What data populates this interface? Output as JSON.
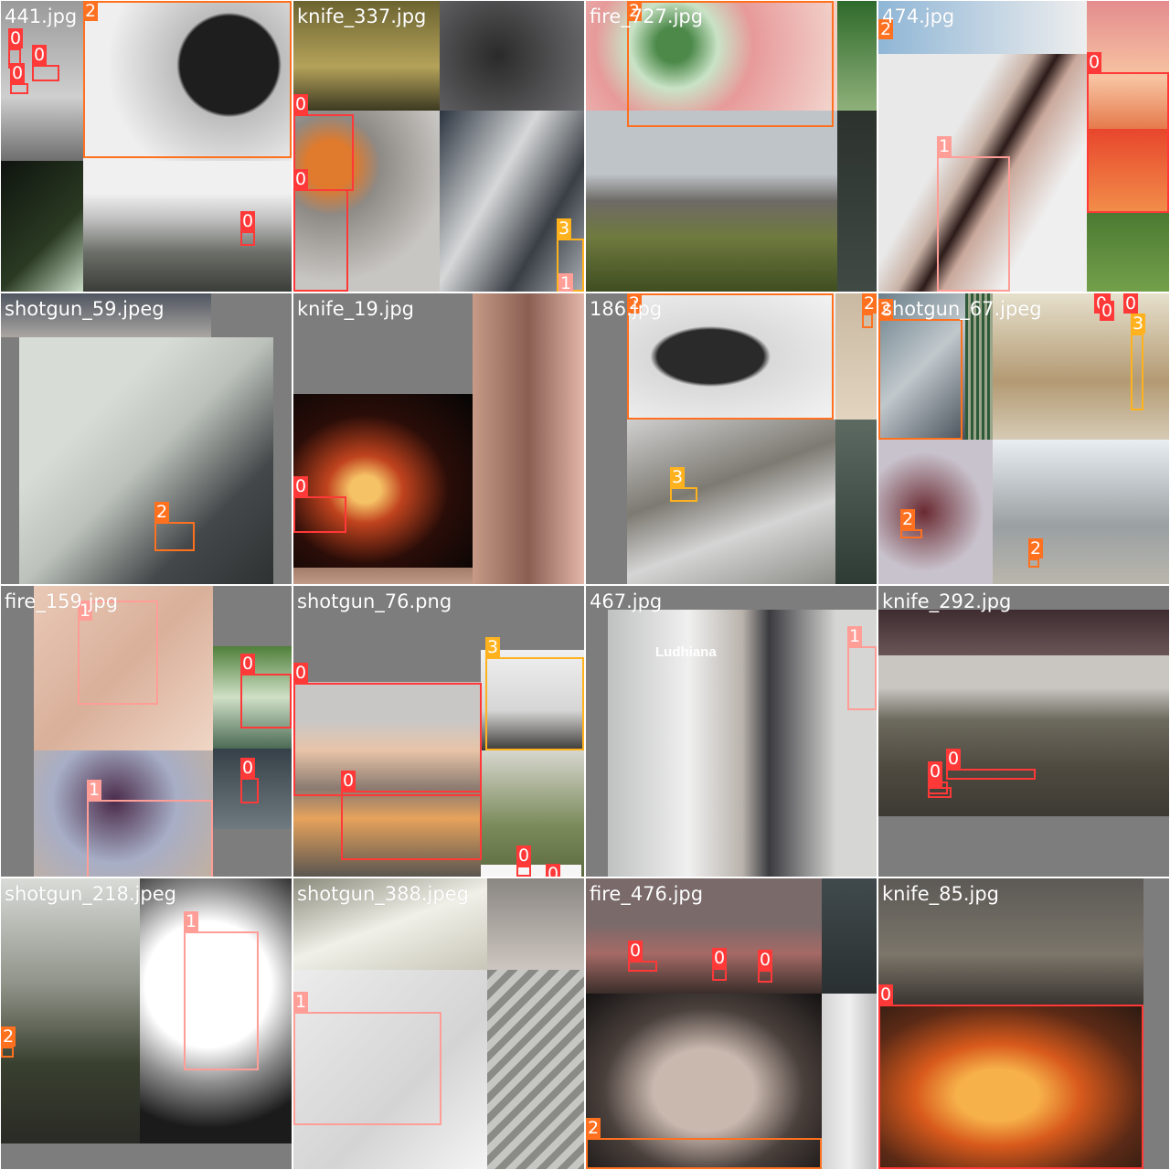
{
  "class_colors": {
    "0": "#ff3838",
    "1": "#ff9d97",
    "2": "#ff701f",
    "3": "#ffb21d"
  },
  "tiles": [
    {
      "label": "441.jpg",
      "theme": "gun-fire"
    },
    {
      "label": "knife_337.jpg",
      "theme": "smoke-fire"
    },
    {
      "label": "fire_727.jpg",
      "theme": "hill-smoke"
    },
    {
      "label": "474.jpg",
      "theme": "knife-sunset"
    },
    {
      "label": "shotgun_59.jpeg",
      "theme": "indoor-gray"
    },
    {
      "label": "knife_19.jpg",
      "theme": "night-fire"
    },
    {
      "label": "186.jpg",
      "theme": "pistol"
    },
    {
      "label": "shotgun_67.jpeg",
      "theme": "store"
    },
    {
      "label": "fire_159.jpg",
      "theme": "skin-closeup"
    },
    {
      "label": "shotgun_76.png",
      "theme": "house-fire"
    },
    {
      "label": "467.jpg",
      "theme": "cctv-man"
    },
    {
      "label": "knife_292.jpg",
      "theme": "wildfire-dark"
    },
    {
      "label": "shotgun_218.jpeg",
      "theme": "knife-spot"
    },
    {
      "label": "shotgun_388.jpeg",
      "theme": "knife-white"
    },
    {
      "label": "fire_476.jpg",
      "theme": "dusk-hand"
    },
    {
      "label": "knife_85.jpg",
      "theme": "forest-fire"
    }
  ],
  "boxes": [
    {
      "tile": 0,
      "cls": "0",
      "label": "0"
    },
    {
      "tile": 0,
      "cls": "0",
      "label": "0"
    },
    {
      "tile": 0,
      "cls": "0",
      "label": "0"
    },
    {
      "tile": 0,
      "cls": "2",
      "label": "2"
    },
    {
      "tile": 0,
      "cls": "0",
      "label": "0"
    },
    {
      "tile": 1,
      "cls": "0",
      "label": "0"
    },
    {
      "tile": 1,
      "cls": "0",
      "label": "0"
    },
    {
      "tile": 1,
      "cls": "3",
      "label": "3"
    },
    {
      "tile": 1,
      "cls": "1",
      "label": "1"
    },
    {
      "tile": 2,
      "cls": "2",
      "label": "2"
    },
    {
      "tile": 3,
      "cls": "0",
      "label": "0"
    },
    {
      "tile": 3,
      "cls": "1",
      "label": "1"
    },
    {
      "tile": 3,
      "cls": "2",
      "label": "2"
    },
    {
      "tile": 4,
      "cls": "2",
      "label": "2"
    },
    {
      "tile": 5,
      "cls": "0",
      "label": "0"
    },
    {
      "tile": 6,
      "cls": "2",
      "label": "2"
    },
    {
      "tile": 6,
      "cls": "3",
      "label": "3"
    },
    {
      "tile": 6,
      "cls": "2",
      "label": "2"
    },
    {
      "tile": 7,
      "cls": "2",
      "label": "2"
    },
    {
      "tile": 7,
      "cls": "3",
      "label": "3"
    },
    {
      "tile": 7,
      "cls": "2",
      "label": "2"
    },
    {
      "tile": 7,
      "cls": "2",
      "label": "2"
    },
    {
      "tile": 7,
      "cls": "0",
      "label": "0"
    },
    {
      "tile": 7,
      "cls": "0",
      "label": "0"
    },
    {
      "tile": 7,
      "cls": "0",
      "label": "0"
    },
    {
      "tile": 8,
      "cls": "1",
      "label": "1"
    },
    {
      "tile": 8,
      "cls": "0",
      "label": "0"
    },
    {
      "tile": 8,
      "cls": "1",
      "label": "1"
    },
    {
      "tile": 8,
      "cls": "0",
      "label": "0"
    },
    {
      "tile": 9,
      "cls": "0",
      "label": "0"
    },
    {
      "tile": 9,
      "cls": "3",
      "label": "3"
    },
    {
      "tile": 9,
      "cls": "0",
      "label": "0"
    },
    {
      "tile": 9,
      "cls": "0",
      "label": "0"
    },
    {
      "tile": 9,
      "cls": "0",
      "label": "0"
    },
    {
      "tile": 10,
      "cls": "1",
      "label": "1"
    },
    {
      "tile": 11,
      "cls": "0",
      "label": "0"
    },
    {
      "tile": 11,
      "cls": "0",
      "label": "0"
    },
    {
      "tile": 11,
      "cls": "0",
      "label": "0"
    },
    {
      "tile": 12,
      "cls": "1",
      "label": "1"
    },
    {
      "tile": 12,
      "cls": "2",
      "label": "2"
    },
    {
      "tile": 13,
      "cls": "1",
      "label": "1"
    },
    {
      "tile": 14,
      "cls": "0",
      "label": "0"
    },
    {
      "tile": 14,
      "cls": "0",
      "label": "0"
    },
    {
      "tile": 14,
      "cls": "0",
      "label": "0"
    },
    {
      "tile": 14,
      "cls": "2",
      "label": "2"
    },
    {
      "tile": 15,
      "cls": "0",
      "label": "0"
    }
  ],
  "scene_text": [
    "Ludhiana"
  ]
}
